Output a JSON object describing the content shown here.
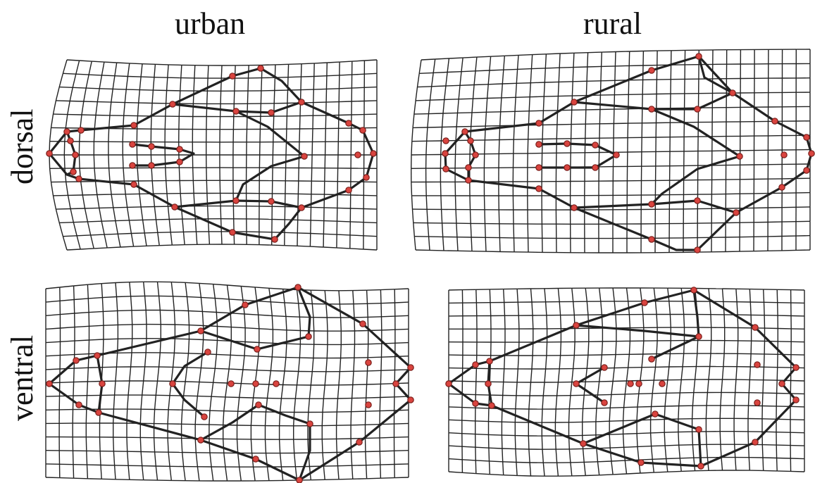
{
  "columns": {
    "urban": "urban",
    "rural": "rural"
  },
  "rows": {
    "dorsal": "dorsal",
    "ventral": "ventral"
  },
  "colors": {
    "grid": "#222222",
    "outline": "#222222",
    "landmark": "#d9443f"
  },
  "panels": [
    {
      "id": "urban-dorsal",
      "column": "urban",
      "row": "dorsal"
    },
    {
      "id": "rural-dorsal",
      "column": "rural",
      "row": "dorsal"
    },
    {
      "id": "urban-ventral",
      "column": "urban",
      "row": "ventral"
    },
    {
      "id": "rural-ventral",
      "column": "rural",
      "row": "ventral"
    }
  ]
}
